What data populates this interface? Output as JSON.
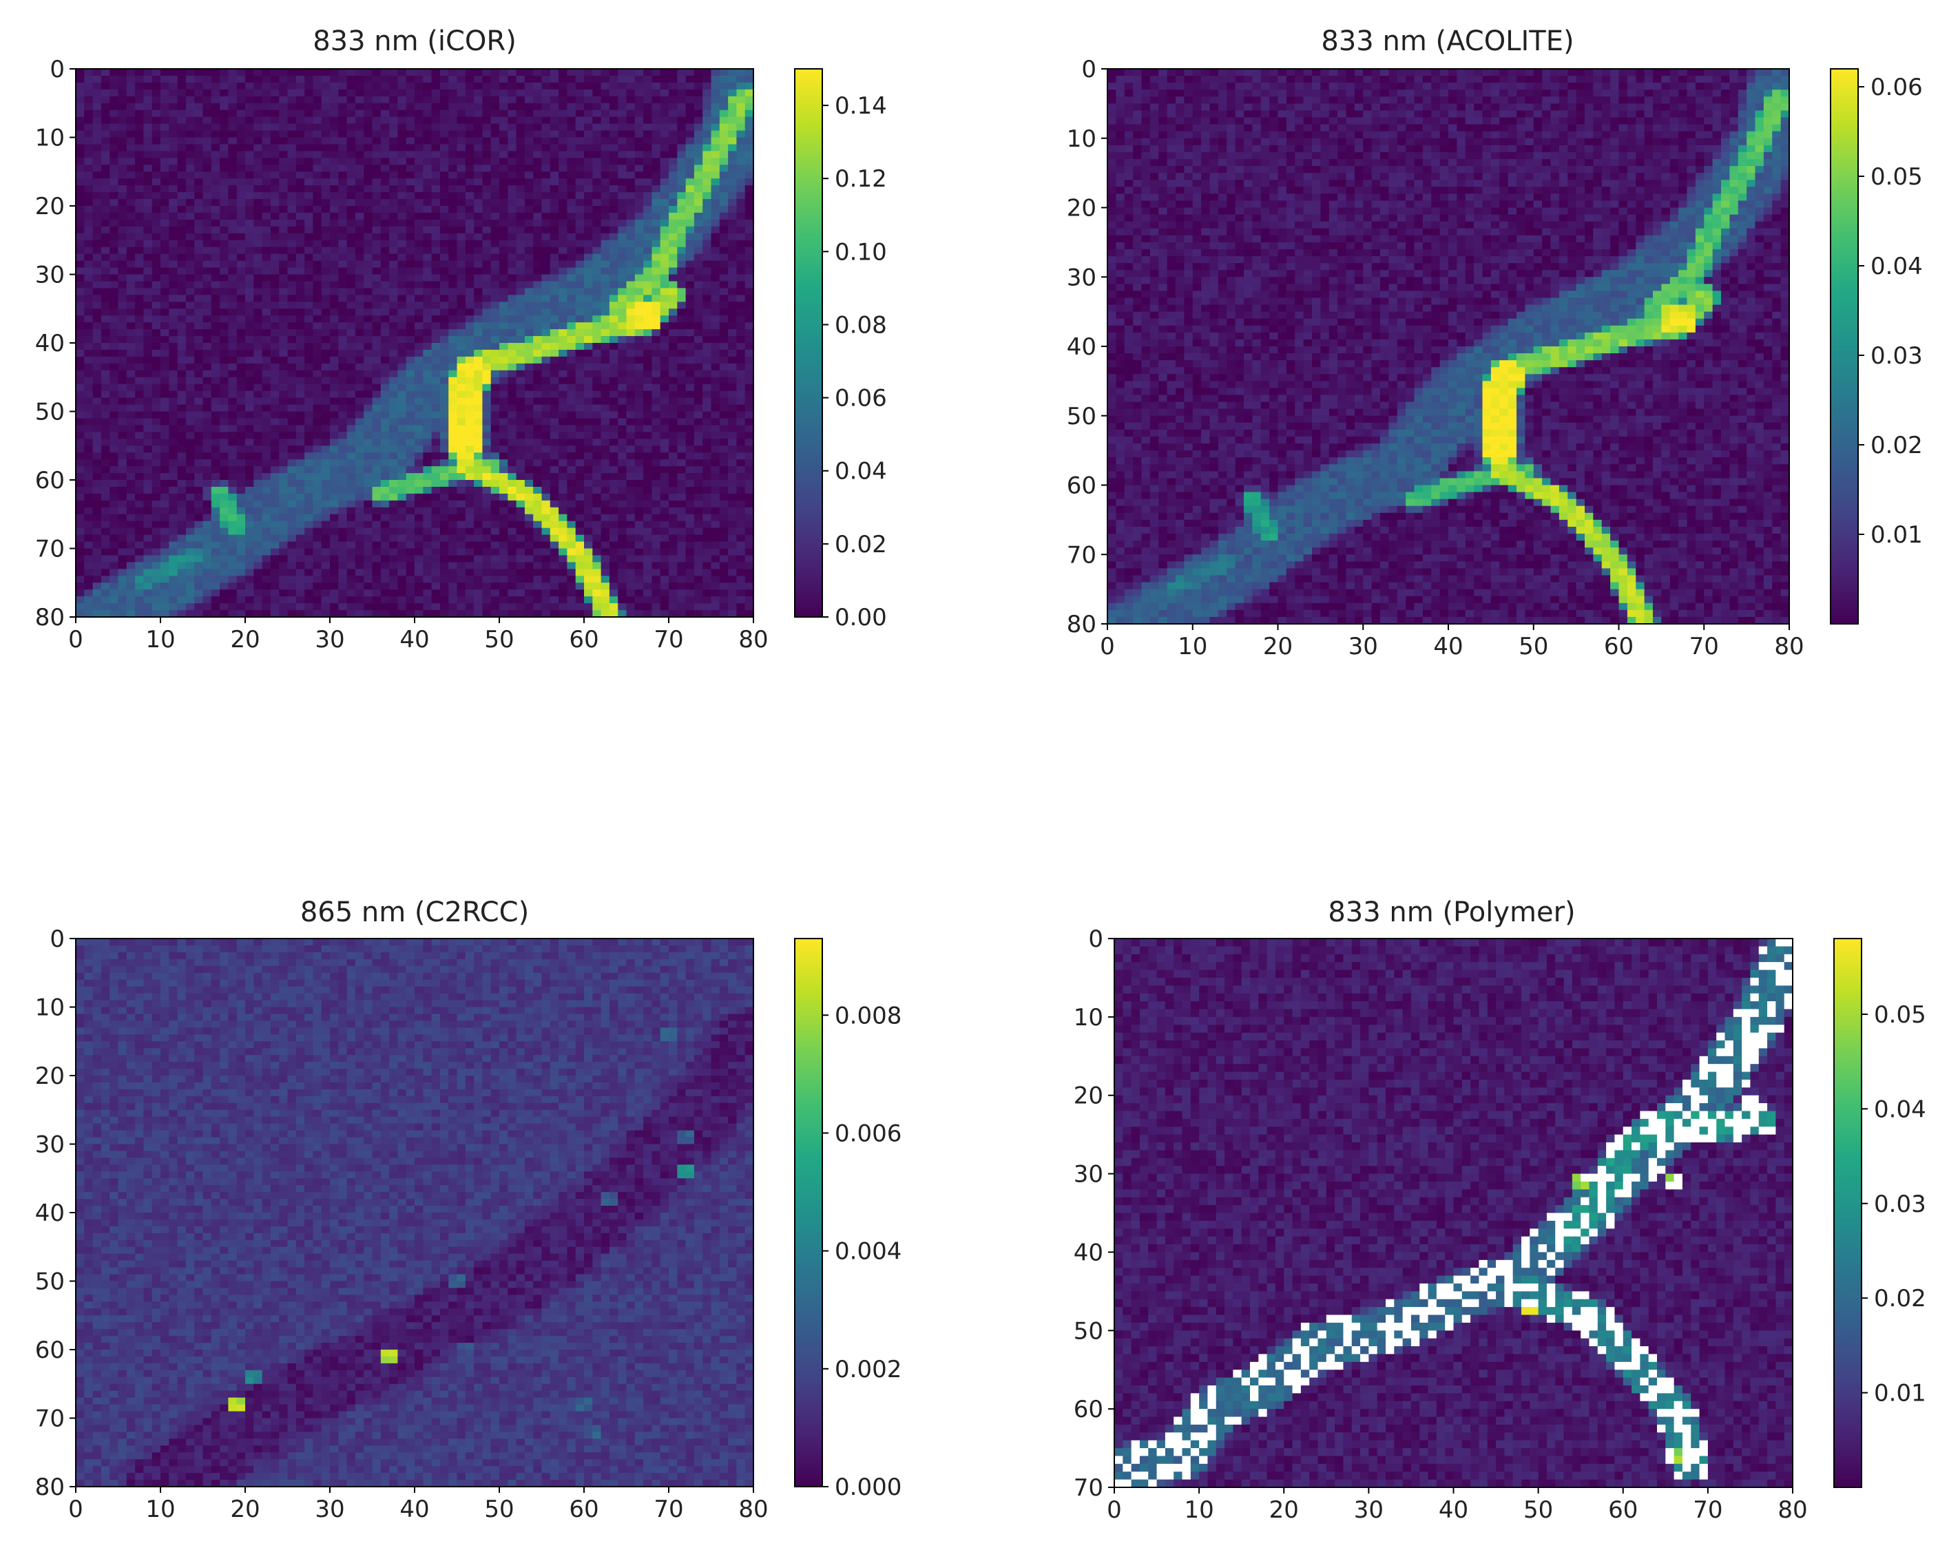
{
  "chart_data": [
    {
      "type": "heatmap",
      "title": "833 nm (iCOR)",
      "xlabel": "",
      "ylabel": "",
      "xlim": [
        0,
        80
      ],
      "ylim": [
        80,
        0
      ],
      "xticks": [
        0,
        10,
        20,
        30,
        40,
        50,
        60,
        70,
        80
      ],
      "yticks": [
        0,
        10,
        20,
        30,
        40,
        50,
        60,
        70,
        80
      ],
      "colormap": "viridis",
      "colorbar": {
        "min": 0.0,
        "max": 0.15,
        "ticks": [
          "0.00",
          "0.02",
          "0.04",
          "0.06",
          "0.08",
          "0.10",
          "0.12",
          "0.14"
        ]
      },
      "masked_cells": false,
      "background_value": 0.006,
      "features": [
        {
          "kind": "band",
          "path": [
            [
              4,
              80
            ],
            [
              15,
              72
            ],
            [
              25,
              63
            ],
            [
              35,
              57
            ],
            [
              42,
              46
            ],
            [
              52,
              38
            ],
            [
              62,
              32
            ],
            [
              70,
              24
            ],
            [
              78,
              10
            ],
            [
              80,
              0
            ]
          ],
          "width": 3.5,
          "value": 0.045,
          "falloff": 1.2
        },
        {
          "kind": "band",
          "path": [
            [
              36,
              62
            ],
            [
              44,
              59
            ],
            [
              49,
              58
            ]
          ],
          "width": 1.0,
          "value": 0.11
        },
        {
          "kind": "band",
          "path": [
            [
              46,
              58
            ],
            [
              53,
              62
            ],
            [
              57,
              67
            ],
            [
              60,
              72
            ],
            [
              63,
              80
            ]
          ],
          "width": 1.0,
          "value": 0.14
        },
        {
          "kind": "band",
          "path": [
            [
              46,
              55
            ],
            [
              46,
              47
            ],
            [
              47,
              44
            ]
          ],
          "width": 1.8,
          "value": 0.15
        },
        {
          "kind": "band",
          "path": [
            [
              48,
              43
            ],
            [
              54,
              41
            ],
            [
              59,
              39
            ],
            [
              62,
              38
            ],
            [
              67,
              37
            ],
            [
              70,
              33
            ]
          ],
          "width": 1.3,
          "value": 0.13
        },
        {
          "kind": "band",
          "path": [
            [
              64,
              35
            ],
            [
              69,
              29
            ],
            [
              71,
              23
            ],
            [
              75,
              14
            ],
            [
              79,
              4
            ]
          ],
          "width": 1.1,
          "value": 0.12
        },
        {
          "kind": "blob",
          "center": [
            67,
            36
          ],
          "radius": 2.0,
          "value": 0.15
        },
        {
          "kind": "band",
          "path": [
            [
              17,
              62
            ],
            [
              19,
              67
            ]
          ],
          "width": 0.9,
          "value": 0.1
        },
        {
          "kind": "band",
          "path": [
            [
              8,
              75
            ],
            [
              14,
              71
            ]
          ],
          "width": 0.9,
          "value": 0.07
        }
      ]
    },
    {
      "type": "heatmap",
      "title": "833 nm (ACOLITE)",
      "xlabel": "",
      "ylabel": "",
      "xlim": [
        0,
        80
      ],
      "ylim": [
        80,
        0
      ],
      "xticks": [
        0,
        10,
        20,
        30,
        40,
        50,
        60,
        70,
        80
      ],
      "yticks": [
        0,
        10,
        20,
        30,
        40,
        50,
        60,
        70,
        80
      ],
      "colormap": "viridis",
      "colorbar": {
        "min": 0.0,
        "max": 0.062,
        "ticks": [
          "0.01",
          "0.02",
          "0.03",
          "0.04",
          "0.05",
          "0.06"
        ]
      },
      "masked_cells": false,
      "background_value": 0.003,
      "features": [
        {
          "kind": "band",
          "path": [
            [
              4,
              80
            ],
            [
              15,
              72
            ],
            [
              25,
              63
            ],
            [
              35,
              57
            ],
            [
              42,
              46
            ],
            [
              52,
              38
            ],
            [
              62,
              32
            ],
            [
              70,
              24
            ],
            [
              78,
              10
            ],
            [
              80,
              0
            ]
          ],
          "width": 3.5,
          "value": 0.018,
          "falloff": 1.2
        },
        {
          "kind": "band",
          "path": [
            [
              36,
              62
            ],
            [
              44,
              59
            ],
            [
              49,
              58
            ]
          ],
          "width": 1.0,
          "value": 0.042
        },
        {
          "kind": "band",
          "path": [
            [
              46,
              58
            ],
            [
              53,
              62
            ],
            [
              57,
              67
            ],
            [
              60,
              72
            ],
            [
              63,
              80
            ]
          ],
          "width": 1.0,
          "value": 0.055
        },
        {
          "kind": "band",
          "path": [
            [
              46,
              55
            ],
            [
              46,
              47
            ],
            [
              47,
              44
            ]
          ],
          "width": 1.8,
          "value": 0.062
        },
        {
          "kind": "band",
          "path": [
            [
              48,
              43
            ],
            [
              54,
              41
            ],
            [
              59,
              39
            ],
            [
              62,
              38
            ],
            [
              67,
              37
            ],
            [
              70,
              33
            ]
          ],
          "width": 1.3,
          "value": 0.05
        },
        {
          "kind": "band",
          "path": [
            [
              64,
              35
            ],
            [
              69,
              29
            ],
            [
              71,
              23
            ],
            [
              75,
              14
            ],
            [
              79,
              4
            ]
          ],
          "width": 1.1,
          "value": 0.045
        },
        {
          "kind": "blob",
          "center": [
            67,
            36
          ],
          "radius": 2.0,
          "value": 0.06
        },
        {
          "kind": "band",
          "path": [
            [
              17,
              62
            ],
            [
              19,
              67
            ]
          ],
          "width": 0.9,
          "value": 0.035
        },
        {
          "kind": "band",
          "path": [
            [
              8,
              75
            ],
            [
              14,
              71
            ]
          ],
          "width": 0.9,
          "value": 0.025
        }
      ]
    },
    {
      "type": "heatmap",
      "title": "865 nm (C2RCC)",
      "xlabel": "",
      "ylabel": "",
      "xlim": [
        0,
        80
      ],
      "ylim": [
        80,
        0
      ],
      "xticks": [
        0,
        10,
        20,
        30,
        40,
        50,
        60,
        70,
        80
      ],
      "yticks": [
        0,
        10,
        20,
        30,
        40,
        50,
        60,
        70,
        80
      ],
      "colormap": "viridis",
      "colorbar": {
        "min": 0.0,
        "max": 0.0093,
        "ticks": [
          "0.000",
          "0.002",
          "0.004",
          "0.006",
          "0.008"
        ]
      },
      "masked_cells": false,
      "background_value": 0.0016,
      "features": [
        {
          "kind": "band",
          "path": [
            [
              10,
              80
            ],
            [
              25,
              68
            ],
            [
              40,
              58
            ],
            [
              52,
              50
            ],
            [
              62,
              40
            ],
            [
              72,
              28
            ],
            [
              80,
              15
            ]
          ],
          "width": 4.0,
          "value": -0.0009,
          "falloff": 1.0
        },
        {
          "kind": "blob",
          "center": [
            19,
            68
          ],
          "radius": 0.5,
          "value": 0.0093
        },
        {
          "kind": "blob",
          "center": [
            37,
            61
          ],
          "radius": 0.5,
          "value": 0.0093
        },
        {
          "kind": "blob",
          "center": [
            21,
            64
          ],
          "radius": 0.4,
          "value": 0.0055
        },
        {
          "kind": "blob",
          "center": [
            72,
            34
          ],
          "radius": 0.4,
          "value": 0.006
        },
        {
          "kind": "blob",
          "center": [
            45,
            50
          ],
          "radius": 0.4,
          "value": 0.0035
        },
        {
          "kind": "blob",
          "center": [
            72,
            29
          ],
          "radius": 0.4,
          "value": 0.0035
        },
        {
          "kind": "blob",
          "center": [
            60,
            68
          ],
          "radius": 0.4,
          "value": 0.0035
        },
        {
          "kind": "blob",
          "center": [
            61,
            72
          ],
          "radius": 0.4,
          "value": 0.0035
        },
        {
          "kind": "blob",
          "center": [
            46,
            60
          ],
          "radius": 0.4,
          "value": 0.003
        },
        {
          "kind": "blob",
          "center": [
            70,
            14
          ],
          "radius": 0.4,
          "value": 0.0035
        },
        {
          "kind": "blob",
          "center": [
            63,
            38
          ],
          "radius": 0.4,
          "value": 0.0035
        }
      ]
    },
    {
      "type": "heatmap",
      "title": "833 nm (Polymer)",
      "xlabel": "",
      "ylabel": "",
      "xlim": [
        0,
        80
      ],
      "ylim": [
        70,
        0
      ],
      "xticks": [
        0,
        10,
        20,
        30,
        40,
        50,
        60,
        70,
        80
      ],
      "yticks": [
        0,
        10,
        20,
        30,
        40,
        50,
        60,
        70
      ],
      "colormap": "viridis",
      "colorbar": {
        "min": 0.0,
        "max": 0.058,
        "ticks": [
          "0.01",
          "0.02",
          "0.03",
          "0.04",
          "0.05"
        ]
      },
      "masked_cells": true,
      "background_value": 0.004,
      "features": [
        {
          "kind": "band",
          "path": [
            [
              0,
              68
            ],
            [
              8,
              66
            ],
            [
              12,
              60
            ],
            [
              18,
              57
            ],
            [
              24,
              52
            ],
            [
              32,
              50
            ],
            [
              40,
              46
            ],
            [
              48,
              43
            ],
            [
              55,
              36
            ],
            [
              62,
              28
            ],
            [
              70,
              20
            ],
            [
              76,
              10
            ],
            [
              80,
              0
            ]
          ],
          "width": 2.6,
          "value": 0.02
        },
        {
          "kind": "band",
          "path": [
            [
              48,
              45
            ],
            [
              56,
              48
            ],
            [
              62,
              55
            ],
            [
              66,
              60
            ],
            [
              68,
              67
            ]
          ],
          "width": 1.8,
          "value": 0.025
        },
        {
          "kind": "band",
          "path": [
            [
              54,
              38
            ],
            [
              58,
              32
            ],
            [
              60,
              27
            ],
            [
              64,
              24
            ],
            [
              70,
              24
            ],
            [
              76,
              23
            ]
          ],
          "width": 1.5,
          "value": 0.03
        },
        {
          "kind": "band",
          "path": [
            [
              70,
              18
            ],
            [
              74,
              12
            ],
            [
              77,
              5
            ],
            [
              79,
              1
            ]
          ],
          "width": 1.5,
          "value": 0.022
        },
        {
          "kind": "blob",
          "center": [
            49,
            47
          ],
          "radius": 0.7,
          "value": 0.055
        },
        {
          "kind": "blob",
          "center": [
            55,
            31
          ],
          "radius": 0.6,
          "value": 0.05
        },
        {
          "kind": "blob",
          "center": [
            66,
            31
          ],
          "radius": 0.6,
          "value": 0.05
        },
        {
          "kind": "blob",
          "center": [
            75,
            21
          ],
          "radius": 0.6,
          "value": 0.055
        },
        {
          "kind": "blob",
          "center": [
            67,
            66
          ],
          "radius": 0.6,
          "value": 0.05
        }
      ]
    }
  ]
}
